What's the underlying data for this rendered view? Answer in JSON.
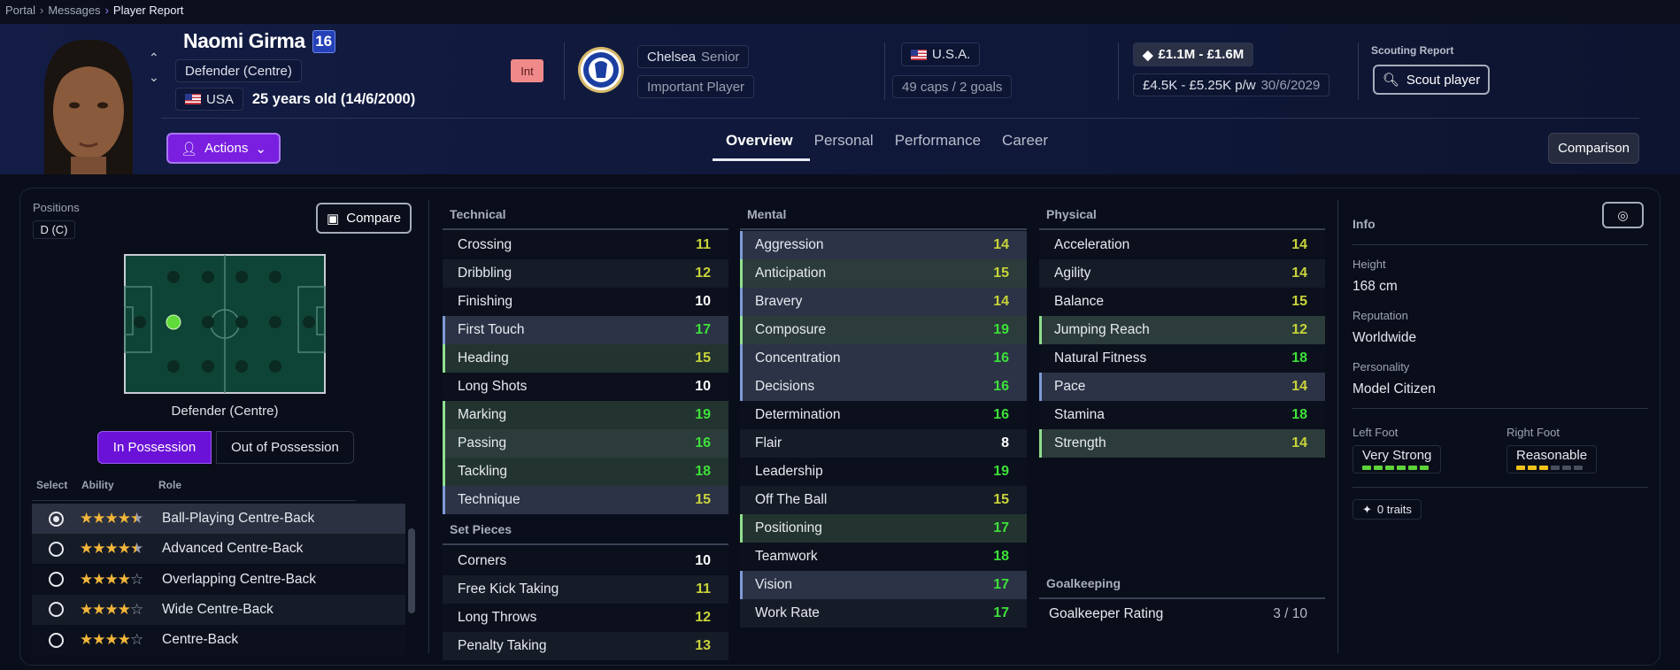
{
  "breadcrumb": [
    "Portal",
    "Messages",
    "Player Report"
  ],
  "player": {
    "name": "Naomi Girma",
    "number": "16",
    "position": "Defender (Centre)",
    "nationality": "USA",
    "age": "25 years old (14/6/2000)",
    "badge": "Int"
  },
  "club": {
    "name": "Chelsea",
    "squad": "Senior",
    "status": "Important Player"
  },
  "international": {
    "country": "U.S.A.",
    "caps": "49 caps / 2 goals"
  },
  "contract": {
    "value": "£1.1M - £1.6M",
    "wage": "£4.5K - £5.25K p/w",
    "expires": "30/6/2029"
  },
  "scouting": {
    "label": "Scouting Report",
    "button": "Scout player"
  },
  "actions_label": "Actions",
  "tabs": [
    {
      "label": "Overview",
      "active": true
    },
    {
      "label": "Personal"
    },
    {
      "label": "Performance"
    },
    {
      "label": "Career"
    }
  ],
  "comparison_label": "Comparison",
  "positions": {
    "label": "Positions",
    "chip": "D (C)",
    "compare": "Compare",
    "pitch_caption": "Defender (Centre)",
    "toggle": [
      "In Possession",
      "Out of Possession"
    ],
    "active_toggle": 0,
    "columns": [
      "Select",
      "Ability",
      "Role"
    ],
    "roles": [
      {
        "name": "Ball-Playing Centre-Back",
        "stars": 4.5,
        "selected": true
      },
      {
        "name": "Advanced Centre-Back",
        "stars": 4.5
      },
      {
        "name": "Overlapping Centre-Back",
        "stars": 4
      },
      {
        "name": "Wide Centre-Back",
        "stars": 4
      },
      {
        "name": "Centre-Back",
        "stars": 4
      }
    ]
  },
  "attributes": {
    "technical": {
      "title": "Technical",
      "items": [
        [
          "Crossing",
          11,
          "dark"
        ],
        [
          "Dribbling",
          12,
          "alt"
        ],
        [
          "Finishing",
          10,
          "dark"
        ],
        [
          "First Touch",
          17,
          "key"
        ],
        [
          "Heading",
          15,
          "pref"
        ],
        [
          "Long Shots",
          10,
          "dark"
        ],
        [
          "Marking",
          19,
          "pref"
        ],
        [
          "Passing",
          16,
          "pref2"
        ],
        [
          "Tackling",
          18,
          "pref"
        ],
        [
          "Technique",
          15,
          "key"
        ]
      ]
    },
    "set_pieces": {
      "title": "Set Pieces",
      "items": [
        [
          "Corners",
          10,
          "dark"
        ],
        [
          "Free Kick Taking",
          11,
          "alt"
        ],
        [
          "Long Throws",
          12,
          "dark"
        ],
        [
          "Penalty Taking",
          13,
          "alt"
        ]
      ]
    },
    "mental": {
      "title": "Mental",
      "items": [
        [
          "Aggression",
          14,
          "key"
        ],
        [
          "Anticipation",
          15,
          "pref2"
        ],
        [
          "Bravery",
          14,
          "key"
        ],
        [
          "Composure",
          19,
          "pref2"
        ],
        [
          "Concentration",
          16,
          "key"
        ],
        [
          "Decisions",
          16,
          "key"
        ],
        [
          "Determination",
          16,
          "dark"
        ],
        [
          "Flair",
          8,
          "alt"
        ],
        [
          "Leadership",
          19,
          "dark"
        ],
        [
          "Off The Ball",
          15,
          "alt"
        ],
        [
          "Positioning",
          17,
          "pref"
        ],
        [
          "Teamwork",
          18,
          "dark"
        ],
        [
          "Vision",
          17,
          "key"
        ],
        [
          "Work Rate",
          17,
          "alt"
        ]
      ]
    },
    "physical": {
      "title": "Physical",
      "items": [
        [
          "Acceleration",
          14,
          "dark"
        ],
        [
          "Agility",
          14,
          "alt"
        ],
        [
          "Balance",
          15,
          "dark"
        ],
        [
          "Jumping Reach",
          12,
          "pref2"
        ],
        [
          "Natural Fitness",
          18,
          "dark"
        ],
        [
          "Pace",
          14,
          "key"
        ],
        [
          "Stamina",
          18,
          "dark"
        ],
        [
          "Strength",
          14,
          "pref2"
        ]
      ]
    },
    "goalkeeping": {
      "title": "Goalkeeping",
      "rating_label": "Goalkeeper Rating",
      "rating": "3 / 10"
    }
  },
  "info": {
    "title": "Info",
    "height_label": "Height",
    "height": "168 cm",
    "reputation_label": "Reputation",
    "reputation": "Worldwide",
    "personality_label": "Personality",
    "personality": "Model Citizen",
    "left_foot_label": "Left Foot",
    "left_foot": "Very Strong",
    "left_foot_level": 6,
    "right_foot_label": "Right Foot",
    "right_foot": "Reasonable",
    "right_foot_level": 3,
    "foot_max": 6,
    "traits": "0 traits"
  },
  "colors": {
    "accent": "#7a1fe0",
    "value_high": "#3ee03a",
    "value_mid": "#c8d33a",
    "value_low": "#ffffff",
    "int_badge": "#f08a8a",
    "number_badge": "#2541b8"
  }
}
